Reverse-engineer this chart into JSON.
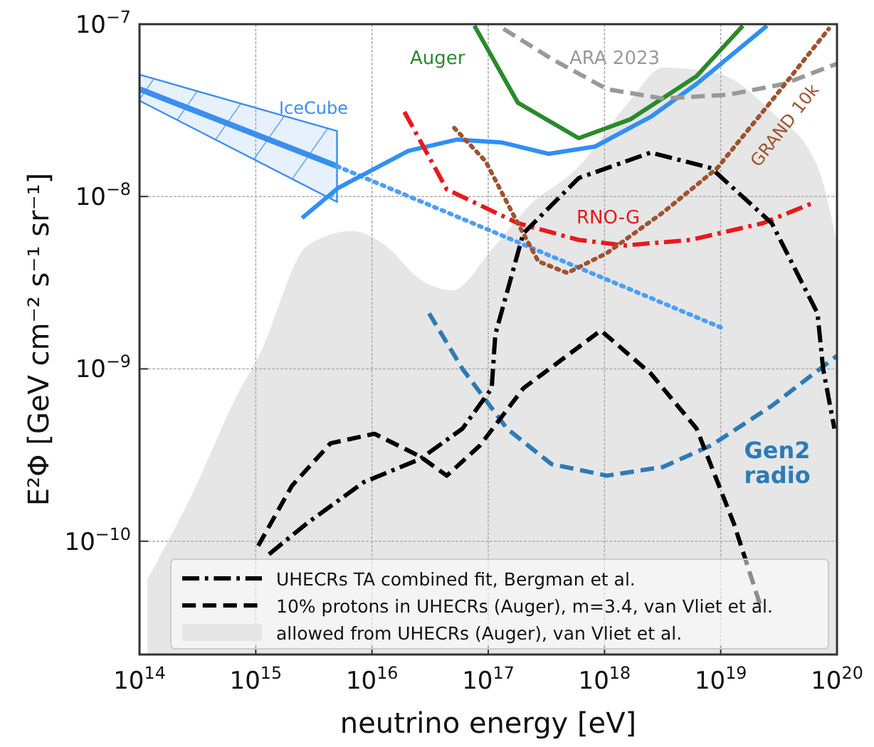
{
  "chart_data": {
    "type": "line",
    "xlabel": "neutrino energy [eV]",
    "ylabel": "E²Φ [GeV cm⁻² s⁻¹ sr⁻¹]",
    "log": "xy",
    "grid": true,
    "legend": "bottom right",
    "xlim": [
      100000000000000.0,
      1e+20
    ],
    "ylim": [
      2.2e-11,
      1e-07
    ],
    "xticks": [
      {
        "value": 100000000000000.0,
        "label": "10$^{14}$"
      },
      {
        "value": 1000000000000000.0,
        "label": "10$^{15}$"
      },
      {
        "value": 1e+16,
        "label": "10$^{16}$"
      },
      {
        "value": 1e+17,
        "label": "10$^{17}$"
      },
      {
        "value": 1e+18,
        "label": "10$^{18}$"
      },
      {
        "value": 1e+19,
        "label": "10$^{19}$"
      },
      {
        "value": 1e+20,
        "label": "10$^{20}$"
      }
    ],
    "yticks": [
      {
        "value": 1e-10,
        "label": "10$^{−10}$"
      },
      {
        "value": 1e-09,
        "label": "10$^{−9}$"
      },
      {
        "value": 1e-08,
        "label": "10$^{−8}$"
      },
      {
        "value": 1e-07,
        "label": "10$^{−7}$"
      }
    ],
    "series": [
      {
        "name": "IceCube",
        "color": "#3a8ef0",
        "line_style": "solid",
        "x": [
          100000000000000.0,
          5000000000000000.0
        ],
        "values": [
          4.2e-08,
          1.5e-08
        ],
        "lower": [
          3.6e-08,
          9.3e-09
        ],
        "upper": [
          5.1e-08,
          2.4e-08
        ]
      },
      {
        "color": "#4a9ff5",
        "line_style": "dotted",
        "x": [
          5000000000000000.0,
          1e+19
        ],
        "values": [
          1.5e-08,
          1.74e-09
        ]
      },
      {
        "color": "#2f8ff5",
        "line_style": "solid",
        "x": [
          2500000000000000.0,
          5100000000000000.0,
          2.05e+16,
          5.4e+16,
          1.3e+17,
          3.3e+17,
          8.3e+17,
          2.5e+18,
          6.2e+18,
          2.5e+19
        ],
        "values": [
          7.5e-09,
          1.12e-08,
          1.84e-08,
          2.14e-08,
          2.06e-08,
          1.77e-08,
          1.95e-08,
          2.9e-08,
          4.5e-08,
          9.8e-08
        ]
      },
      {
        "name": "Auger",
        "color": "#2a8a2a",
        "line_style": "solid",
        "x": [
          7.6e+16,
          1.8e+17,
          6e+17,
          1.66e+18,
          6.2e+18,
          1.55e+19
        ],
        "values": [
          9.8e-08,
          3.5e-08,
          2.18e-08,
          2.8e-08,
          5e-08,
          9.8e-08
        ]
      },
      {
        "name": "ARA 2023",
        "color": "#999999",
        "line_style": "dashed",
        "x": [
          1.35e+17,
          3.5e+17,
          1.05e+18,
          3.2e+18,
          1.17e+19,
          3.5e+19,
          1e+20
        ],
        "values": [
          9.4e-08,
          6.3e-08,
          4.2e-08,
          3.7e-08,
          3.9e-08,
          4.5e-08,
          5.9e-08
        ]
      },
      {
        "name": "RNO-G",
        "color": "#e8191c",
        "line_style": "dashdot",
        "x": [
          1.9e+16,
          4.4e+16,
          1.8e+17,
          6e+17,
          1.5e+18,
          5.5e+18,
          2.3e+19,
          6e+19
        ],
        "values": [
          3.1e-08,
          1.1e-08,
          7e-09,
          5.6e-09,
          5.2e-09,
          5.6e-09,
          7e-09,
          9.1e-09
        ]
      },
      {
        "name": "GRAND 10k",
        "color": "#a0522d",
        "line_style": "dotted",
        "x": [
          5.1e+16,
          9.5e+16,
          1.7e+17,
          2.7e+17,
          4.8e+17,
          1.05e+18,
          3.2e+18,
          9.3e+18,
          2.75e+19,
          8.5e+19
        ],
        "values": [
          2.5e-08,
          1.6e-08,
          7.5e-09,
          4.2e-09,
          3.6e-09,
          4.7e-09,
          8.1e-09,
          1.46e-08,
          3.6e-08,
          9.4e-08
        ]
      },
      {
        "name": "Gen2 radio",
        "color": "#2c7bb6",
        "line_style": "dashed",
        "x": [
          3.1e+16,
          6e+16,
          1.45e+17,
          3.5e+17,
          1.05e+18,
          3.2e+18,
          8.3e+18,
          2.75e+19,
          1e+20
        ],
        "values": [
          2.1e-09,
          1e-09,
          4.5e-10,
          2.8e-10,
          2.4e-10,
          2.7e-10,
          3.6e-10,
          6.1e-10,
          1.19e-09
        ]
      },
      {
        "name": "UHECRs TA combined fit, Bergman et al.",
        "color": "#000000",
        "line_style": "dashdot",
        "x": [
          1300000000000000.0,
          2800000000000000.0,
          8500000000000000.0,
          2.6e+16,
          6e+16,
          1.07e+17,
          1.15e+17,
          2e+17,
          6e+17,
          2.5e+18,
          8.3e+18,
          2.75e+19,
          6.8e+19,
          7.6e+19,
          9.5e+19
        ],
        "values": [
          8.4e-11,
          1.28e-10,
          2.2e-10,
          3e-10,
          4.5e-10,
          7.7e-10,
          1.58e-09,
          6.1e-09,
          1.28e-08,
          1.8e-08,
          1.46e-08,
          7e-09,
          2.1e-09,
          1e-09,
          4.5e-10
        ]
      },
      {
        "name": "10% protons in UHECRs (Auger), m=3.4, van Vliet et al.",
        "color": "#000000",
        "line_style": "dashed",
        "x": [
          1050000000000000.0,
          2050000000000000.0,
          4400000000000000.0,
          1.05e+16,
          2.6e+16,
          4.4e+16,
          8.5e+16,
          2e+17,
          9.3e+17,
          2.5e+18,
          6.2e+18,
          1.3e+19,
          2.2e+19
        ],
        "values": [
          9.4e-11,
          2.1e-10,
          3.7e-10,
          4.2e-10,
          3.1e-10,
          2.4e-10,
          3.6e-10,
          7.7e-10,
          1.67e-09,
          9.4e-10,
          4.5e-10,
          1.26e-10,
          4.2e-11
        ]
      },
      {
        "type": "area",
        "name": "allowed from UHECRs (Auger), van Vliet et al.",
        "color": "#e6e6e6",
        "x": [
          117000000000000.0,
          280000000000000.0,
          740000000000000.0,
          1050000000000000.0,
          2800000000000000.0,
          6800000000000000.0,
          1.3e+16,
          2.6e+16,
          4.9e+16,
          1.07e+17,
          2.2e+17,
          6e+17,
          1.66e+18,
          3.2e+18,
          9.3e+18,
          2.75e+19,
          6.8e+19,
          1e+20
        ],
        "values": [
          6e-11,
          1.84e-10,
          7.7e-10,
          1.16e-09,
          5.2e-09,
          6.3e-09,
          5.2e-09,
          3.3e-09,
          2.85e-09,
          4.9e-09,
          8.7e-09,
          1.49e-08,
          3.6e-08,
          5.6e-08,
          5.2e-08,
          3.1e-08,
          1.49e-08,
          5.4e-09
        ]
      }
    ]
  }
}
